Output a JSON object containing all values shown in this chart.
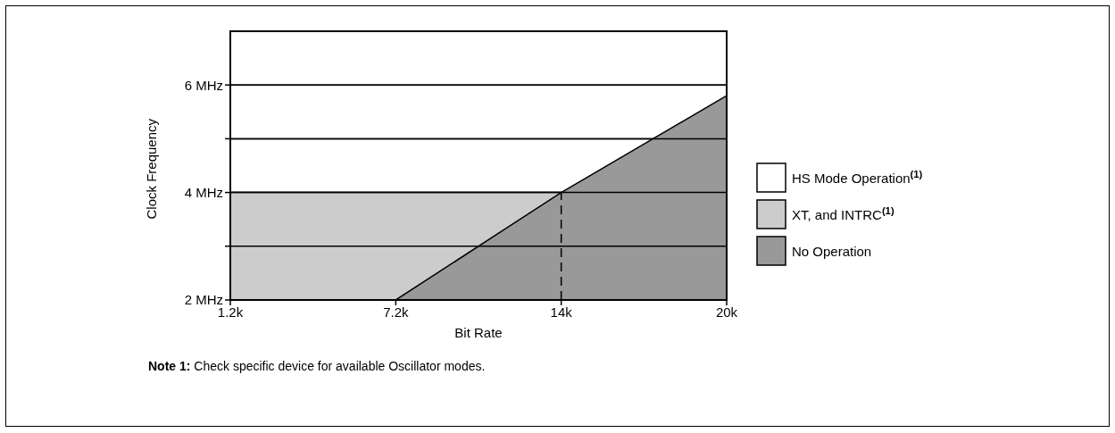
{
  "chart_data": {
    "type": "area",
    "xlabel": "Bit Rate",
    "ylabel": "Clock Frequency",
    "categories": [
      "1.2k",
      "7.2k",
      "14k",
      "20k"
    ],
    "series": [
      {
        "name": "HS Mode Operation$^{(1)}$",
        "color": "#ffffff",
        "values": [
          null,
          null,
          null,
          null
        ]
      },
      {
        "name": "XT, and INTRC$^{(1)}$",
        "color": "#cccccc",
        "values": [
          4,
          4,
          4,
          null
        ]
      },
      {
        "name": "No Operation",
        "color": "#999999",
        "values": [
          null,
          2,
          4,
          5.8
        ]
      }
    ],
    "ylim": [
      2,
      7
    ],
    "yticks": [
      {
        "value": 2,
        "label": "2 MHz"
      },
      {
        "value": 3,
        "label": null
      },
      {
        "value": 4,
        "label": "4 MHz"
      },
      {
        "value": 5,
        "label": null
      },
      {
        "value": 6,
        "label": "6 MHz"
      }
    ],
    "grid": "y",
    "legend": "right",
    "ref_lines": [
      {
        "axis": "x",
        "value": "14k",
        "line_style": "dashed"
      }
    ],
    "annotations": [
      "Note 1: Check specific device for available Oscillator modes."
    ]
  }
}
